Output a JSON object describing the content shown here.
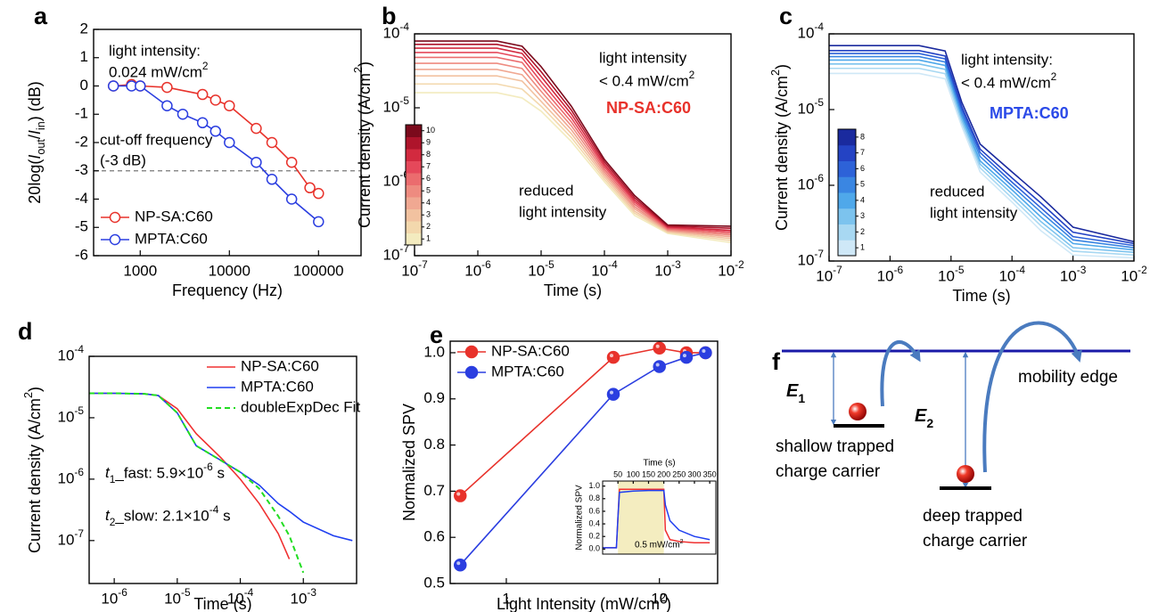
{
  "chart_data": [
    {
      "panel": "a",
      "type": "line",
      "xlabel": "Frequency (Hz)",
      "ylabel": "20log(Iout/Iin) (dB)",
      "xlog": true,
      "xlim": [
        300,
        300000
      ],
      "xticks": [
        1000,
        10000,
        100000
      ],
      "ylim": [
        -6,
        2
      ],
      "yticks": [
        -6,
        -5,
        -4,
        -3,
        -2,
        -1,
        0,
        1,
        2
      ],
      "markers": "hollow",
      "hline": -3,
      "legend": "lower left",
      "annotations": [
        "light intensity:",
        "0.024 mW/cm2",
        "cut-off frequency",
        "(-3 dB)"
      ],
      "series": [
        {
          "name": "NP-SA:C60",
          "color": "#e8322b",
          "x": [
            500,
            800,
            1000,
            2000,
            5000,
            7000,
            10000,
            20000,
            30000,
            50000,
            80000,
            100000
          ],
          "values": [
            0,
            0.05,
            0,
            -0.05,
            -0.3,
            -0.5,
            -0.7,
            -1.5,
            -2.0,
            -2.7,
            -3.6,
            -3.8
          ]
        },
        {
          "name": "MPTA:C60",
          "color": "#2b3ee0",
          "x": [
            500,
            800,
            1000,
            2000,
            3000,
            5000,
            7000,
            10000,
            20000,
            30000,
            50000,
            100000
          ],
          "values": [
            0,
            0,
            0,
            -0.7,
            -1.0,
            -1.3,
            -1.6,
            -2.0,
            -2.7,
            -3.3,
            -4.0,
            -4.8
          ]
        }
      ]
    },
    {
      "panel": "b",
      "type": "line",
      "xlabel": "Time (s)",
      "ylabel": "Current density (A/cm2)",
      "xlog": true,
      "ylog": true,
      "xlim": [
        1e-07,
        0.01
      ],
      "xticks": [
        {
          "value": 1e-07,
          "label": "10-7"
        },
        {
          "value": 1e-06,
          "label": "10-6"
        },
        {
          "value": 1e-05,
          "label": "10-5"
        },
        {
          "value": 0.0001,
          "label": "10-4"
        },
        {
          "value": 0.001,
          "label": "10-3"
        },
        {
          "value": 0.01,
          "label": "10-2"
        }
      ],
      "ylim": [
        1e-07,
        0.0001
      ],
      "yticks": [
        {
          "value": 1e-07,
          "label": "10-7"
        },
        {
          "value": 1e-06,
          "label": "10-6"
        },
        {
          "value": 1e-05,
          "label": "10-5"
        },
        {
          "value": 0.0001,
          "label": "10-4"
        }
      ],
      "annotations": [
        "light intensity",
        "< 0.4 mW/cm2",
        "NP-SA:C60",
        "reduced",
        "light intensity"
      ],
      "colorbar": {
        "ticks": [
          1,
          2,
          3,
          4,
          5,
          6,
          7,
          8,
          9,
          10
        ]
      },
      "x": [
        1e-07,
        2e-06,
        5e-06,
        1e-05,
        3e-05,
        0.0001,
        0.0003,
        0.001,
        0.01
      ],
      "series": [
        {
          "color": "#f3ebbf",
          "values": [
            1.6e-05,
            1.6e-05,
            1.36e-05,
            9e-06,
            3.5e-06,
            1e-06,
            3.5e-07,
            2e-07,
            1.5e-07
          ]
        },
        {
          "color": "#f3d8ad",
          "values": [
            2.1e-05,
            2.1e-05,
            1.79e-05,
            1.05e-05,
            3.96e-06,
            1.08e-06,
            3.75e-07,
            2.06e-07,
            1.6e-07
          ]
        },
        {
          "color": "#f2c2a0",
          "values": [
            2.7e-05,
            2.7e-05,
            2.3e-05,
            1.22e-05,
            4.47e-06,
            1.17e-06,
            4e-07,
            2.12e-07,
            1.7e-07
          ]
        },
        {
          "color": "#f0a892",
          "values": [
            3.3e-05,
            3.3e-05,
            2.8e-05,
            1.43e-05,
            5.05e-06,
            1.26e-06,
            4.3e-07,
            2.18e-07,
            1.8e-07
          ]
        },
        {
          "color": "#ee8b80",
          "values": [
            4e-05,
            4e-05,
            3.4e-05,
            1.67e-05,
            5.71e-06,
            1.36e-06,
            4.6e-07,
            2.24e-07,
            1.9e-07
          ]
        },
        {
          "color": "#eb6c6e",
          "values": [
            4.8e-05,
            4.8e-05,
            4.1e-05,
            1.94e-05,
            6.45e-06,
            1.47e-06,
            4.95e-07,
            2.31e-07,
            2e-07
          ]
        },
        {
          "color": "#e5485a",
          "values": [
            5.6e-05,
            5.6e-05,
            4.76e-05,
            2.26e-05,
            7.29e-06,
            1.59e-06,
            5.3e-07,
            2.38e-07,
            2.1e-07
          ]
        },
        {
          "color": "#d22a3f",
          "values": [
            6.4e-05,
            6.4e-05,
            5.44e-05,
            2.64e-05,
            8.24e-06,
            1.71e-06,
            5.65e-07,
            2.45e-07,
            2.2e-07
          ]
        },
        {
          "color": "#ae142b",
          "values": [
            7.2e-05,
            7.2e-05,
            6.12e-05,
            3.08e-05,
            9.31e-06,
            1.85e-06,
            6.05e-07,
            2.52e-07,
            2.35e-07
          ]
        },
        {
          "color": "#7b0a1c",
          "values": [
            8e-05,
            8e-05,
            6.8e-05,
            3.6e-05,
            1.05e-05,
            2e-06,
            6.5e-07,
            2.6e-07,
            2.5e-07
          ]
        }
      ]
    },
    {
      "panel": "c",
      "type": "line",
      "xlabel": "Time (s)",
      "ylabel": "Current density (A/cm2)",
      "xlog": true,
      "ylog": true,
      "xlim": [
        1e-07,
        0.01
      ],
      "xticks": [
        {
          "value": 1e-07,
          "label": "10-7"
        },
        {
          "value": 1e-06,
          "label": "10-6"
        },
        {
          "value": 1e-05,
          "label": "10-5"
        },
        {
          "value": 0.0001,
          "label": "10-4"
        },
        {
          "value": 0.001,
          "label": "10-3"
        },
        {
          "value": 0.01,
          "label": "10-2"
        }
      ],
      "ylim": [
        1e-07,
        0.0001
      ],
      "yticks": [
        {
          "value": 1e-07,
          "label": "10-7"
        },
        {
          "value": 1e-06,
          "label": "10-6"
        },
        {
          "value": 1e-05,
          "label": "10-5"
        },
        {
          "value": 0.0001,
          "label": "10-4"
        }
      ],
      "annotations": [
        "light intensity:",
        "< 0.4 mW/cm2",
        "MPTA:C60",
        "reduced",
        "light intensity"
      ],
      "colorbar": {
        "ticks": [
          1,
          2,
          3,
          4,
          5,
          6,
          7,
          8
        ]
      },
      "x": [
        1e-07,
        3e-06,
        8e-06,
        1.5e-05,
        3e-05,
        0.0001,
        0.0003,
        0.001,
        0.01
      ],
      "series": [
        {
          "color": "#cfe8f7",
          "values": [
            3e-05,
            3e-05,
            2.55e-05,
            6e-06,
            1.5e-06,
            6e-07,
            2.5e-07,
            1.2e-07,
            1.1e-07
          ]
        },
        {
          "color": "#a8d8f2",
          "values": [
            3.5e-05,
            3.5e-05,
            2.98e-05,
            6.7e-06,
            1.7e-06,
            6.8e-07,
            2.9e-07,
            1.35e-07,
            1.2e-07
          ]
        },
        {
          "color": "#7cc3ee",
          "values": [
            4e-05,
            4e-05,
            3.4e-05,
            7.4e-06,
            1.9e-06,
            7.7e-07,
            3.3e-07,
            1.5e-07,
            1.3e-07
          ]
        },
        {
          "color": "#4fa8ea",
          "values": [
            4.5e-05,
            4.5e-05,
            3.83e-05,
            8.2e-06,
            2.1e-06,
            8.7e-07,
            3.8e-07,
            1.7e-07,
            1.4e-07
          ]
        },
        {
          "color": "#3a86e2",
          "values": [
            5e-05,
            5e-05,
            4.25e-05,
            9e-06,
            2.4e-06,
            9.8e-07,
            4.4e-07,
            1.9e-07,
            1.5e-07
          ]
        },
        {
          "color": "#2d62d8",
          "values": [
            5.5e-05,
            5.5e-05,
            4.68e-05,
            1e-05,
            2.7e-06,
            1.1e-06,
            5e-07,
            2.1e-07,
            1.6e-07
          ]
        },
        {
          "color": "#2443c4",
          "values": [
            6e-05,
            6e-05,
            5.1e-05,
            1.1e-05,
            3e-06,
            1.25e-06,
            5.8e-07,
            2.4e-07,
            1.7e-07
          ]
        },
        {
          "color": "#1a2a9e",
          "values": [
            7e-05,
            7e-05,
            5.95e-05,
            1.25e-05,
            3.5e-06,
            1.5e-06,
            7e-07,
            2.8e-07,
            1.8e-07
          ]
        }
      ]
    },
    {
      "panel": "d",
      "type": "line",
      "xlabel": "Time (s)",
      "ylabel": "Current density (A/cm2)",
      "xlog": true,
      "ylog": true,
      "xlim": [
        4e-07,
        0.007
      ],
      "xticks": [
        {
          "value": 1e-06,
          "label": "10-6"
        },
        {
          "value": 1e-05,
          "label": "10-5"
        },
        {
          "value": 0.0001,
          "label": "10-4"
        },
        {
          "value": 0.001,
          "label": "10-3"
        }
      ],
      "ylim": [
        2e-08,
        0.0001
      ],
      "yticks": [
        {
          "value": 1e-07,
          "label": "10-7"
        },
        {
          "value": 1e-06,
          "label": "10-6"
        },
        {
          "value": 1e-05,
          "label": "10-5"
        },
        {
          "value": 0.0001,
          "label": "10-4"
        }
      ],
      "legend": "upper right",
      "annotations": [
        "t1_fast: 5.9×10-6 s",
        "t2_slow: 2.1×10-4 s"
      ],
      "x": [
        4e-07,
        1e-06,
        3e-06,
        5e-06,
        1e-05,
        2e-05,
        5e-05,
        0.0001,
        0.0002,
        0.0004,
        0.0006,
        0.001,
        0.003,
        0.006
      ],
      "series": [
        {
          "name": "NP-SA:C60",
          "color": "#f03030",
          "values": [
            2.5e-05,
            2.5e-05,
            2.45e-05,
            2.3e-05,
            1.4e-05,
            5.5e-06,
            2.2e-06,
            1e-06,
            4e-07,
            1.3e-07,
            5e-08,
            null,
            null,
            null
          ]
        },
        {
          "name": "MPTA:C60",
          "color": "#1f3ff0",
          "values": [
            2.5e-05,
            2.5e-05,
            2.45e-05,
            2.3e-05,
            1.2e-05,
            3.5e-06,
            2e-06,
            1.3e-06,
            8e-07,
            4e-07,
            3e-07,
            2e-07,
            1.2e-07,
            1e-07
          ]
        },
        {
          "name": "doubleExpDec Fit",
          "color": "#22dd22",
          "dash": true,
          "values": [
            2.5e-05,
            2.5e-05,
            2.45e-05,
            2.3e-05,
            1.2e-05,
            3.5e-06,
            2e-06,
            1.3e-06,
            7e-07,
            2.5e-07,
            1.2e-07,
            3e-08,
            null,
            null
          ]
        }
      ]
    },
    {
      "panel": "e",
      "type": "line",
      "xlabel": "Light Intensity (mW/cm2)",
      "ylabel": "Normalized SPV",
      "xlog": true,
      "xlim": [
        0.43,
        24
      ],
      "xticks": [
        1,
        10
      ],
      "ylim": [
        0.5,
        1.025
      ],
      "yticks": [
        0.5,
        0.6,
        0.7,
        0.8,
        0.9,
        {
          "value": 1,
          "label": "1.0"
        }
      ],
      "markers": "filled",
      "legend": "upper left",
      "series": [
        {
          "name": "NP-SA:C60",
          "color": "#e8322b",
          "x": [
            0.5,
            5,
            10,
            15,
            20
          ],
          "values": [
            0.69,
            0.99,
            1.01,
            1.0,
            1.0
          ]
        },
        {
          "name": "MPTA:C60",
          "color": "#2b3ee0",
          "x": [
            0.5,
            5,
            10,
            15,
            20
          ],
          "values": [
            0.54,
            0.91,
            0.97,
            0.99,
            1.0
          ]
        }
      ],
      "inset": {
        "type": "line",
        "xlabel": "Time (s)",
        "ylabel": "Normalized SPV",
        "xaxis_top": true,
        "xlim": [
          0,
          370
        ],
        "xticks": [
          50,
          100,
          150,
          200,
          250,
          300,
          350
        ],
        "ylim": [
          -0.08,
          1.08
        ],
        "yticks": [
          {
            "value": 0,
            "label": "0.0"
          },
          0.2,
          0.4,
          0.6,
          0.8,
          {
            "value": 1,
            "label": "1.0"
          }
        ],
        "shade": [
          50,
          200
        ],
        "annotations": [
          "0.5 mW/cm2"
        ],
        "x": [
          0,
          45,
          50,
          55,
          100,
          150,
          195,
          200,
          205,
          220,
          250,
          300,
          350
        ],
        "series": [
          {
            "color": "#f03030",
            "values": [
              0.02,
              0.02,
              0.5,
              0.95,
              0.95,
              0.95,
              0.95,
              0.95,
              0.3,
              0.15,
              0.12,
              0.1,
              0.1
            ]
          },
          {
            "color": "#1f3ff0",
            "values": [
              0.02,
              0.02,
              0.5,
              0.9,
              0.92,
              0.93,
              0.93,
              0.93,
              0.7,
              0.45,
              0.3,
              0.2,
              0.15
            ]
          }
        ]
      }
    }
  ],
  "diagram": {
    "panel": "f",
    "labels": [
      "E1",
      "E2",
      "mobility edge",
      "shallow trapped",
      "charge carrier",
      "deep trapped",
      "charge carrier"
    ]
  }
}
